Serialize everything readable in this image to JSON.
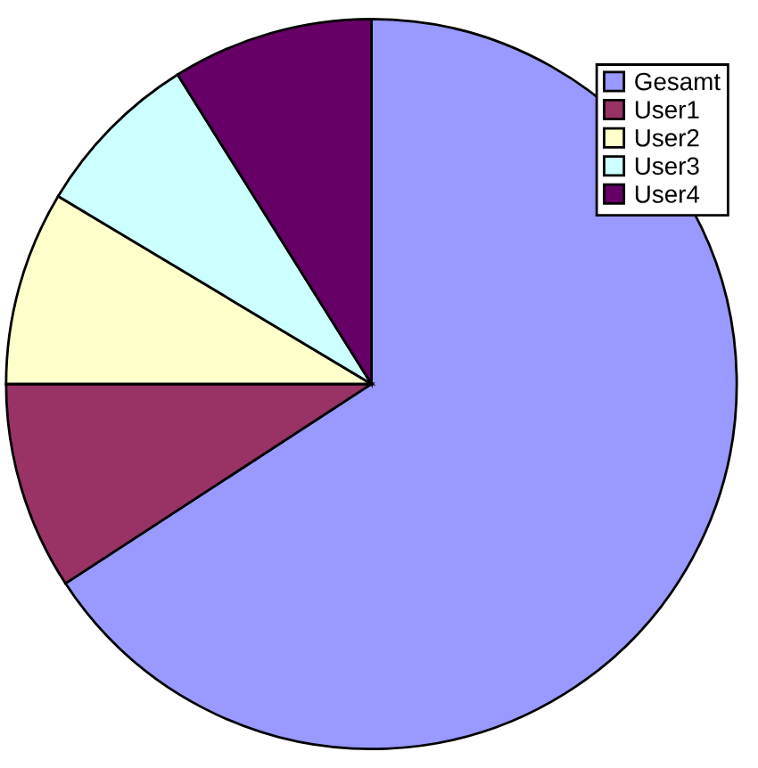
{
  "chart_data": {
    "type": "pie",
    "categories": [
      "Gesamt",
      "User1",
      "User2",
      "User3",
      "User4"
    ],
    "values": [
      65.8,
      9.2,
      8.6,
      7.5,
      8.9
    ],
    "colors": [
      "#9999ff",
      "#993366",
      "#ffffcc",
      "#ccffff",
      "#660066"
    ],
    "legend": "top right"
  }
}
